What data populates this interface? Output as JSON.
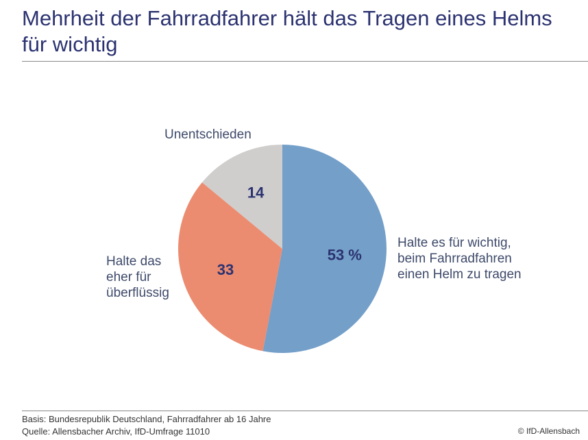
{
  "title": "Mehrheit der Fahrradfahrer hält das Tragen eines Helms für wichtig",
  "chart_data": {
    "type": "pie",
    "title": "Mehrheit der Fahrradfahrer hält das Tragen eines Helms für wichtig",
    "start": "12 o'clock, clockwise",
    "slices": [
      {
        "label": "Halte es für wichtig, beim Fahrradfahren einen Helm zu tragen",
        "value": 53,
        "data_label": "53 %",
        "color": "#739fc9"
      },
      {
        "label": "Halte das eher für überflüssig",
        "value": 33,
        "data_label": "33",
        "color": "#eb8c71"
      },
      {
        "label": "Unentschieden",
        "value": 14,
        "data_label": "14",
        "color": "#cfcecd"
      }
    ]
  },
  "labels": {
    "wichtig": [
      "Halte es für wichtig,",
      "beim Fahrradfahren",
      "einen Helm zu tragen"
    ],
    "ueberfluessig": [
      "Halte das",
      "eher für",
      "überflüssig"
    ],
    "unentschieden": "Unentschieden"
  },
  "footer": {
    "basis": "Basis: Bundesrepublik Deutschland, Fahrradfahrer ab 16 Jahre",
    "quelle": "Quelle: Allensbacher Archiv, IfD-Umfrage 11010",
    "copyright": "© IfD-Allensbach"
  }
}
